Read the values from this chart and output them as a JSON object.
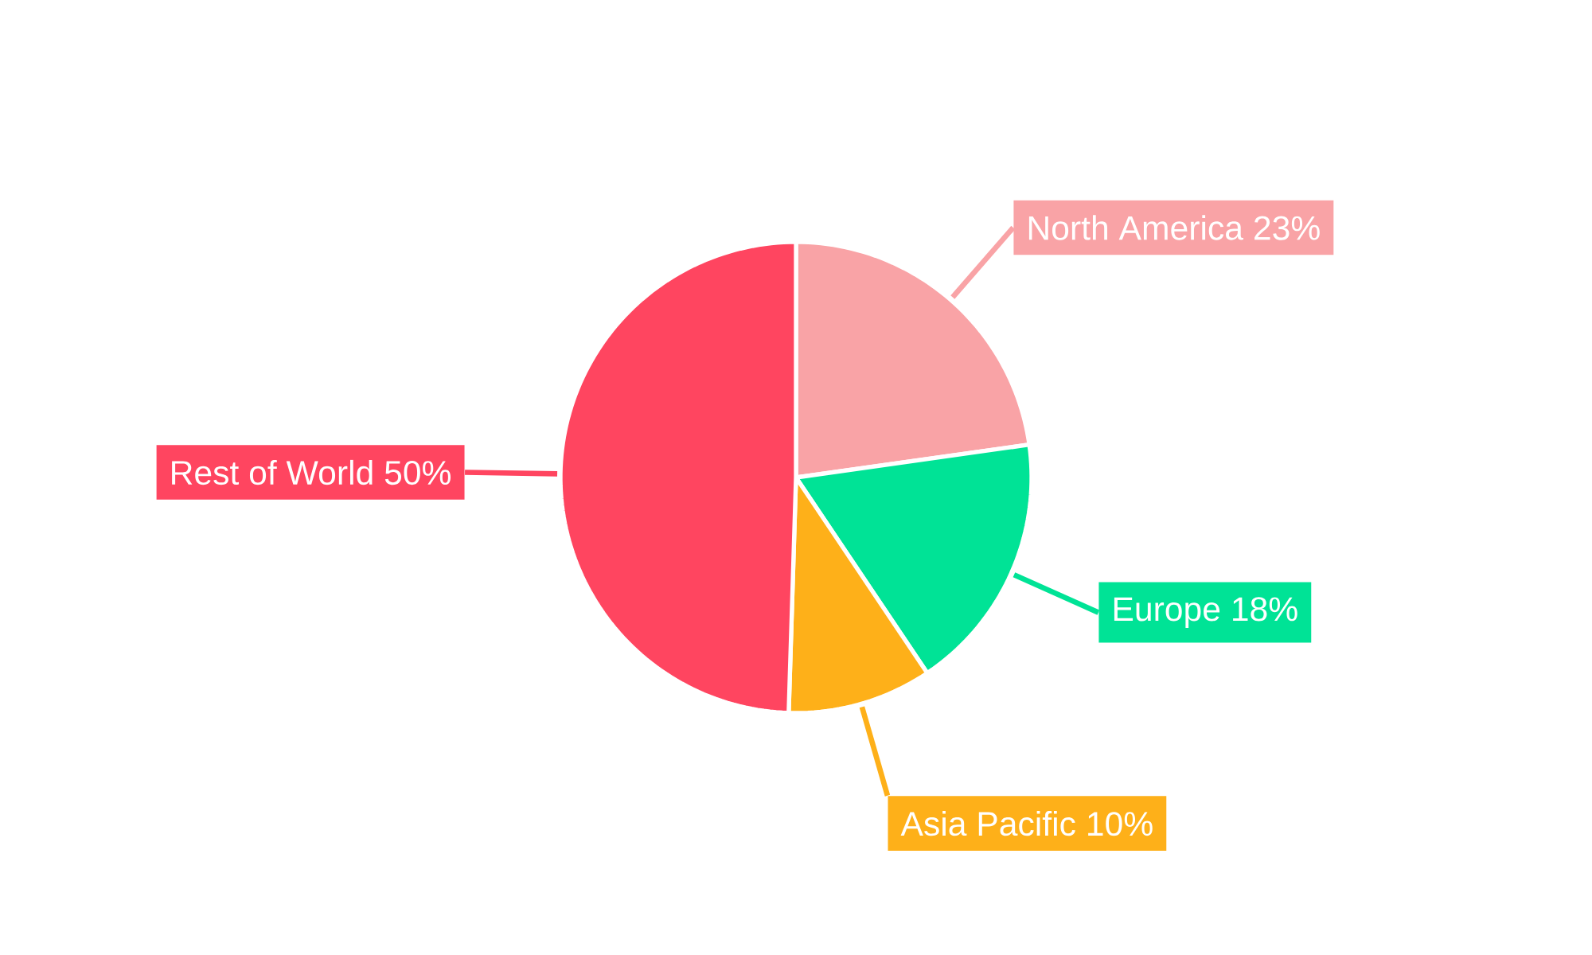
{
  "chart_data": {
    "type": "pie",
    "categories": [
      "North America",
      "Europe",
      "Asia Pacific",
      "Rest of World"
    ],
    "values": [
      23,
      18,
      10,
      50
    ],
    "value_labels": [
      "23%",
      "18%",
      "10%",
      "50%"
    ],
    "colors": [
      "#f9a3a6",
      "#00e396",
      "#feb019",
      "#ff4560"
    ]
  }
}
